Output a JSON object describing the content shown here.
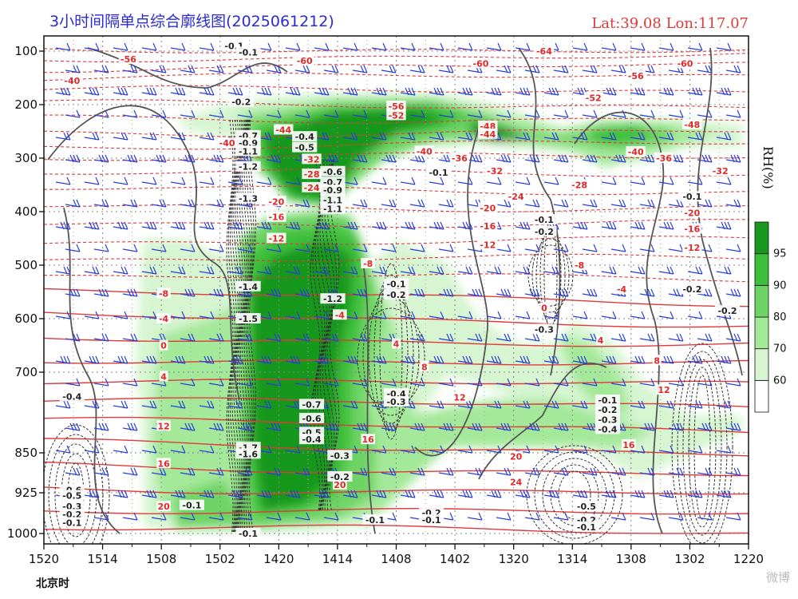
{
  "title": "3小时间隔单点综合廓线图(2025061212)",
  "location": "Lat:39.08  Lon:117.07",
  "watermark": "微博",
  "chart_data": {
    "type": "time-pressure cross section",
    "xlabel": "北京时",
    "ylabel": "",
    "x_ticks": [
      "1520",
      "1514",
      "1508",
      "1502",
      "1420",
      "1414",
      "1408",
      "1402",
      "1320",
      "1314",
      "1308",
      "1302",
      "1220"
    ],
    "y_ticks": [
      100,
      200,
      300,
      400,
      500,
      600,
      700,
      850,
      925,
      1000
    ],
    "ylim": [
      100,
      1000
    ],
    "rh_colorbar": {
      "label": "RH(%)",
      "ticks": [
        60,
        70,
        80,
        90,
        95
      ],
      "colors": [
        "#ffffff",
        "#d6f5d0",
        "#a4e89a",
        "#6ed465",
        "#3cbf3a",
        "#17981f"
      ]
    },
    "temperature_labels": [
      {
        "t": 0.12,
        "p": 115,
        "v": "-56"
      },
      {
        "t": 0.37,
        "p": 118,
        "v": "-60"
      },
      {
        "t": 0.62,
        "p": 123,
        "v": "-60"
      },
      {
        "t": 0.71,
        "p": 100,
        "v": "-64"
      },
      {
        "t": 0.91,
        "p": 123,
        "v": "-60"
      },
      {
        "t": 0.84,
        "p": 146,
        "v": "-56"
      },
      {
        "t": 0.78,
        "p": 187,
        "v": "-52"
      },
      {
        "t": 0.5,
        "p": 203,
        "v": "-56"
      },
      {
        "t": 0.5,
        "p": 220,
        "v": "-52"
      },
      {
        "t": 0.34,
        "p": 247,
        "v": "-44"
      },
      {
        "t": 0.63,
        "p": 240,
        "v": "-48"
      },
      {
        "t": 0.63,
        "p": 255,
        "v": "-44"
      },
      {
        "t": 0.92,
        "p": 237,
        "v": "-48"
      },
      {
        "t": 0.26,
        "p": 272,
        "v": "-40"
      },
      {
        "t": 0.54,
        "p": 287,
        "v": "-40"
      },
      {
        "t": 0.84,
        "p": 288,
        "v": "-40"
      },
      {
        "t": 0.59,
        "p": 300,
        "v": "-36"
      },
      {
        "t": 0.88,
        "p": 300,
        "v": "-36"
      },
      {
        "t": 0.38,
        "p": 302,
        "v": "-32"
      },
      {
        "t": 0.64,
        "p": 324,
        "v": "-32"
      },
      {
        "t": 0.96,
        "p": 324,
        "v": "-32"
      },
      {
        "t": 0.38,
        "p": 330,
        "v": "-28"
      },
      {
        "t": 0.76,
        "p": 350,
        "v": "-28"
      },
      {
        "t": 0.38,
        "p": 355,
        "v": "-24"
      },
      {
        "t": 0.67,
        "p": 372,
        "v": "-24"
      },
      {
        "t": 0.33,
        "p": 381,
        "v": "-20"
      },
      {
        "t": 0.63,
        "p": 393,
        "v": "-20"
      },
      {
        "t": 0.92,
        "p": 402,
        "v": "-20"
      },
      {
        "t": 0.33,
        "p": 410,
        "v": "-16"
      },
      {
        "t": 0.63,
        "p": 427,
        "v": "-16"
      },
      {
        "t": 0.92,
        "p": 432,
        "v": "-16"
      },
      {
        "t": 0.33,
        "p": 450,
        "v": "-12"
      },
      {
        "t": 0.63,
        "p": 462,
        "v": "-12"
      },
      {
        "t": 0.92,
        "p": 467,
        "v": "-12"
      },
      {
        "t": 0.46,
        "p": 497,
        "v": "-8"
      },
      {
        "t": 0.76,
        "p": 500,
        "v": "-8"
      },
      {
        "t": 0.17,
        "p": 553,
        "v": "-8"
      },
      {
        "t": 0.82,
        "p": 545,
        "v": "-4"
      },
      {
        "t": 0.17,
        "p": 600,
        "v": "-4"
      },
      {
        "t": 0.42,
        "p": 593,
        "v": "-4"
      },
      {
        "t": 0.71,
        "p": 580,
        "v": "0"
      },
      {
        "t": 0.17,
        "p": 650,
        "v": "0"
      },
      {
        "t": 0.5,
        "p": 647,
        "v": "4"
      },
      {
        "t": 0.79,
        "p": 640,
        "v": "4"
      },
      {
        "t": 0.17,
        "p": 708,
        "v": "4"
      },
      {
        "t": 0.54,
        "p": 690,
        "v": "8"
      },
      {
        "t": 0.87,
        "p": 678,
        "v": "8"
      },
      {
        "t": 0.59,
        "p": 747,
        "v": "12"
      },
      {
        "t": 0.88,
        "p": 733,
        "v": "12"
      },
      {
        "t": 0.17,
        "p": 800,
        "v": "12"
      },
      {
        "t": 0.46,
        "p": 825,
        "v": "16"
      },
      {
        "t": 0.83,
        "p": 835,
        "v": "16"
      },
      {
        "t": 0.17,
        "p": 870,
        "v": "16"
      },
      {
        "t": 0.67,
        "p": 857,
        "v": "20"
      },
      {
        "t": 0.42,
        "p": 910,
        "v": "20"
      },
      {
        "t": 0.17,
        "p": 950,
        "v": "20"
      },
      {
        "t": 0.67,
        "p": 905,
        "v": "24"
      },
      {
        "t": 0.04,
        "p": 155,
        "v": "-40"
      }
    ],
    "vertical_velocity_labels": [
      {
        "t": 0.27,
        "p": 90,
        "v": "-0.1"
      },
      {
        "t": 0.28,
        "p": 195,
        "v": "-0.2"
      },
      {
        "t": 0.29,
        "p": 102,
        "v": "-0.1"
      },
      {
        "t": 0.29,
        "p": 258,
        "v": "-0.7"
      },
      {
        "t": 0.29,
        "p": 272,
        "v": "-0.9"
      },
      {
        "t": 0.29,
        "p": 287,
        "v": "-1.1"
      },
      {
        "t": 0.29,
        "p": 316,
        "v": "-1.2"
      },
      {
        "t": 0.29,
        "p": 375,
        "v": "-1.3"
      },
      {
        "t": 0.29,
        "p": 540,
        "v": "-1.4"
      },
      {
        "t": 0.29,
        "p": 600,
        "v": "-1.5"
      },
      {
        "t": 0.29,
        "p": 840,
        "v": "-1.7"
      },
      {
        "t": 0.29,
        "p": 852,
        "v": "-1.6"
      },
      {
        "t": 0.29,
        "p": 1000,
        "v": "-0.1"
      },
      {
        "t": 0.37,
        "p": 260,
        "v": "-0.4"
      },
      {
        "t": 0.37,
        "p": 280,
        "v": "-0.5"
      },
      {
        "t": 0.41,
        "p": 325,
        "v": "-0.6"
      },
      {
        "t": 0.41,
        "p": 345,
        "v": "-0.7"
      },
      {
        "t": 0.41,
        "p": 360,
        "v": "-0.9"
      },
      {
        "t": 0.41,
        "p": 378,
        "v": "-1.1"
      },
      {
        "t": 0.41,
        "p": 395,
        "v": "-1.1"
      },
      {
        "t": 0.41,
        "p": 563,
        "v": "-1.2"
      },
      {
        "t": 0.38,
        "p": 760,
        "v": "-0.7"
      },
      {
        "t": 0.38,
        "p": 786,
        "v": "-0.6"
      },
      {
        "t": 0.38,
        "p": 812,
        "v": "-0.5"
      },
      {
        "t": 0.38,
        "p": 825,
        "v": "-0.4"
      },
      {
        "t": 0.42,
        "p": 855,
        "v": "-0.3"
      },
      {
        "t": 0.42,
        "p": 895,
        "v": "-0.2"
      },
      {
        "t": 0.5,
        "p": 535,
        "v": "-0.1"
      },
      {
        "t": 0.5,
        "p": 555,
        "v": "-0.2"
      },
      {
        "t": 0.5,
        "p": 740,
        "v": "-0.4"
      },
      {
        "t": 0.5,
        "p": 755,
        "v": "-0.3"
      },
      {
        "t": 0.47,
        "p": 975,
        "v": "-0.1"
      },
      {
        "t": 0.55,
        "p": 962,
        "v": "-0.2"
      },
      {
        "t": 0.55,
        "p": 975,
        "v": "-0.1"
      },
      {
        "t": 0.56,
        "p": 327,
        "v": "-0.1"
      },
      {
        "t": 0.71,
        "p": 415,
        "v": "-0.1"
      },
      {
        "t": 0.71,
        "p": 437,
        "v": "-0.2"
      },
      {
        "t": 0.71,
        "p": 620,
        "v": "-0.3"
      },
      {
        "t": 0.8,
        "p": 752,
        "v": "-0.1"
      },
      {
        "t": 0.8,
        "p": 770,
        "v": "-0.2"
      },
      {
        "t": 0.8,
        "p": 788,
        "v": "-0.3"
      },
      {
        "t": 0.8,
        "p": 806,
        "v": "-0.4"
      },
      {
        "t": 0.77,
        "p": 950,
        "v": "-0.5"
      },
      {
        "t": 0.77,
        "p": 975,
        "v": "-0.2"
      },
      {
        "t": 0.77,
        "p": 988,
        "v": "-0.1"
      },
      {
        "t": 0.92,
        "p": 372,
        "v": "-0.1"
      },
      {
        "t": 0.92,
        "p": 545,
        "v": "-0.2"
      },
      {
        "t": 0.97,
        "p": 585,
        "v": "-0.2"
      },
      {
        "t": 0.04,
        "p": 745,
        "v": "-0.4"
      },
      {
        "t": 0.04,
        "p": 920,
        "v": "-0.6"
      },
      {
        "t": 0.04,
        "p": 930,
        "v": "-0.5"
      },
      {
        "t": 0.04,
        "p": 950,
        "v": "-0.3"
      },
      {
        "t": 0.04,
        "p": 965,
        "v": "-0.2"
      },
      {
        "t": 0.04,
        "p": 980,
        "v": "-0.1"
      },
      {
        "t": 0.21,
        "p": 948,
        "v": "-0.1"
      }
    ]
  }
}
